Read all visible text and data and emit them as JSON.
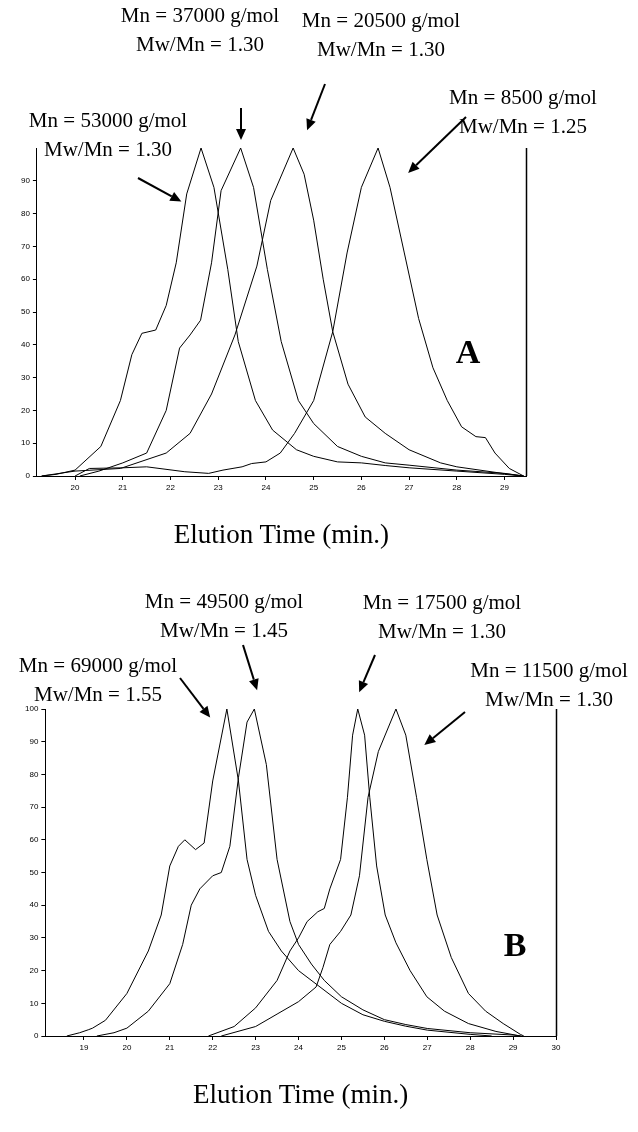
{
  "chart_data": [
    {
      "type": "line",
      "xlabel": "Elution Time (min.)",
      "xlim": [
        19.2,
        29.45
      ],
      "xticks": [
        20,
        21,
        22,
        23,
        24,
        25,
        26,
        27,
        28,
        29
      ],
      "ylim": [
        0,
        100
      ],
      "yticks": [
        0,
        10,
        20,
        30,
        40,
        50,
        60,
        70,
        80,
        90
      ],
      "grid": false,
      "legend": false,
      "series": [
        {
          "color": "#000000",
          "x": [
            19.3,
            19.6,
            20,
            20.54,
            20.95,
            21.19,
            21.4,
            21.69,
            21.91,
            22.12,
            22.34,
            22.64,
            22.91,
            23.2,
            23.42,
            23.78,
            24.14,
            24.64,
            25,
            25.5,
            26,
            26.5,
            27,
            28,
            29,
            29.4
          ],
          "values": [
            0,
            0.5,
            1.8,
            9,
            23,
            37,
            43.5,
            44.5,
            52,
            65,
            86,
            100,
            88,
            63,
            41,
            23,
            14,
            8,
            6,
            4.3,
            4,
            3.2,
            2.5,
            1.5,
            0.5,
            0
          ]
        },
        {
          "color": "#000000",
          "x": [
            20.1,
            20.5,
            21,
            21.5,
            21.91,
            22.19,
            22.41,
            22.63,
            22.86,
            23.06,
            23.47,
            23.74,
            24.03,
            24.32,
            24.68,
            25,
            25.5,
            26,
            26.5,
            27,
            28,
            29,
            29.4
          ],
          "values": [
            0,
            1.5,
            4,
            7,
            20,
            39,
            43,
            47.5,
            65,
            87,
            100,
            88,
            63,
            41,
            23,
            16,
            9,
            6,
            4,
            3.3,
            1.8,
            0.8,
            0
          ]
        },
        {
          "color": "#000000",
          "x": [
            19.3,
            20,
            20.95,
            21.91,
            22.41,
            22.86,
            23.35,
            23.81,
            24.1,
            24.57,
            24.8,
            25,
            25.2,
            25.4,
            25.72,
            26.08,
            26.5,
            27,
            27.66,
            28,
            28.96,
            29.4
          ],
          "values": [
            0,
            1.5,
            2.3,
            7,
            13,
            25,
            43,
            64,
            84,
            100,
            92,
            78,
            60,
            44,
            28,
            18,
            13,
            8,
            4,
            2.8,
            0.8,
            0
          ]
        },
        {
          "color": "#000000",
          "x": [
            20,
            20.3,
            21,
            21.5,
            22.3,
            22.8,
            23.1,
            23.5,
            23.7,
            24,
            24.3,
            24.6,
            25,
            25.4,
            25.7,
            26,
            26.35,
            26.6,
            26.9,
            27.2,
            27.5,
            27.8,
            28.1,
            28.4,
            28.6,
            28.8,
            29.1,
            29.4
          ],
          "values": [
            0,
            2.3,
            2.5,
            2.8,
            1.3,
            0.8,
            1.8,
            2.8,
            3.8,
            4.3,
            7,
            13,
            23,
            44,
            68,
            88,
            100,
            88,
            68,
            48,
            33,
            23,
            15,
            12,
            11.7,
            7,
            2.3,
            0
          ]
        }
      ],
      "annotations": [
        "Mn = 53000 g/mol\nMw/Mn = 1.30",
        "Mn = 37000 g/mol\nMw/Mn = 1.30",
        "Mn = 20500 g/mol\nMw/Mn = 1.30",
        "Mn = 8500 g/mol\nMw/Mn = 1.25",
        "A"
      ]
    },
    {
      "type": "line",
      "xlabel": "Elution Time (min.)",
      "xlim": [
        18.1,
        30
      ],
      "xticks": [
        19,
        20,
        21,
        22,
        23,
        24,
        25,
        26,
        27,
        28,
        29,
        30
      ],
      "ylim": [
        0,
        100
      ],
      "yticks": [
        0,
        10,
        20,
        30,
        40,
        50,
        60,
        70,
        80,
        90,
        100
      ],
      "grid": false,
      "legend": false,
      "series": [
        {
          "color": "#000000",
          "x": [
            18.6,
            18.9,
            19.1,
            19.2,
            19.5,
            20,
            20.5,
            20.8,
            21,
            21.2,
            21.35,
            21.6,
            21.8,
            22,
            22.33,
            22.6,
            22.8,
            23,
            23.3,
            23.6,
            24,
            24.5,
            25,
            25.5,
            26,
            26.5,
            27,
            28,
            28.5
          ],
          "values": [
            0,
            1,
            1.9,
            2.4,
            4.8,
            13,
            26,
            37,
            52,
            58,
            60,
            57,
            59,
            78,
            100,
            78,
            54,
            43,
            32,
            26,
            20,
            15,
            10,
            6.5,
            4.5,
            3,
            1.8,
            0.5,
            0
          ]
        },
        {
          "color": "#000000",
          "x": [
            19.3,
            19.7,
            20,
            20.5,
            21,
            21.3,
            21.5,
            21.7,
            22,
            22.2,
            22.4,
            22.6,
            22.8,
            22.97,
            23.25,
            23.5,
            23.8,
            24,
            24.3,
            24.6,
            25,
            25.5,
            26,
            26.5,
            27,
            28,
            29,
            29.2
          ],
          "values": [
            0,
            1,
            2.4,
            7.6,
            16,
            28,
            40,
            45,
            49,
            50,
            58,
            79,
            96,
            100,
            83,
            54,
            35,
            28,
            22,
            17,
            12,
            8,
            5,
            3.5,
            2.3,
            1,
            0.3,
            0
          ]
        },
        {
          "color": "#000000",
          "x": [
            21.9,
            22.5,
            23,
            23.5,
            23.8,
            24,
            24.2,
            24.45,
            24.6,
            24.73,
            24.98,
            25.14,
            25.26,
            25.38,
            25.54,
            25.66,
            25.82,
            26.02,
            26.27,
            26.6,
            26.99,
            27.4,
            27.96,
            28.6,
            29.17
          ],
          "values": [
            0,
            2.9,
            8.6,
            17,
            26,
            30,
            35,
            38,
            39,
            45,
            54,
            73,
            92,
            100,
            92,
            73,
            52,
            37,
            28.5,
            20,
            12,
            7.6,
            3.8,
            1.4,
            0
          ]
        },
        {
          "color": "#000000",
          "x": [
            22.2,
            23,
            23.5,
            24,
            24.41,
            24.57,
            24.73,
            24.98,
            25.22,
            25.42,
            25.62,
            25.86,
            26.27,
            26.5,
            26.75,
            26.99,
            27.23,
            27.56,
            27.96,
            28.36,
            28.77,
            29.17,
            29.25
          ],
          "values": [
            0,
            2.9,
            6.7,
            10.5,
            15,
            21,
            28,
            32,
            37,
            49,
            73,
            87,
            100,
            92,
            73,
            54,
            37,
            24,
            13,
            7.6,
            3.8,
            0.5,
            0
          ]
        }
      ],
      "annotations": [
        "Mn = 69000 g/mol\nMw/Mn = 1.55",
        "Mn = 49500 g/mol\nMw/Mn = 1.45",
        "Mn = 17500 g/mol\nMw/Mn = 1.30",
        "Mn = 11500 g/mol\nMw/Mn = 1.30",
        "B"
      ]
    }
  ]
}
